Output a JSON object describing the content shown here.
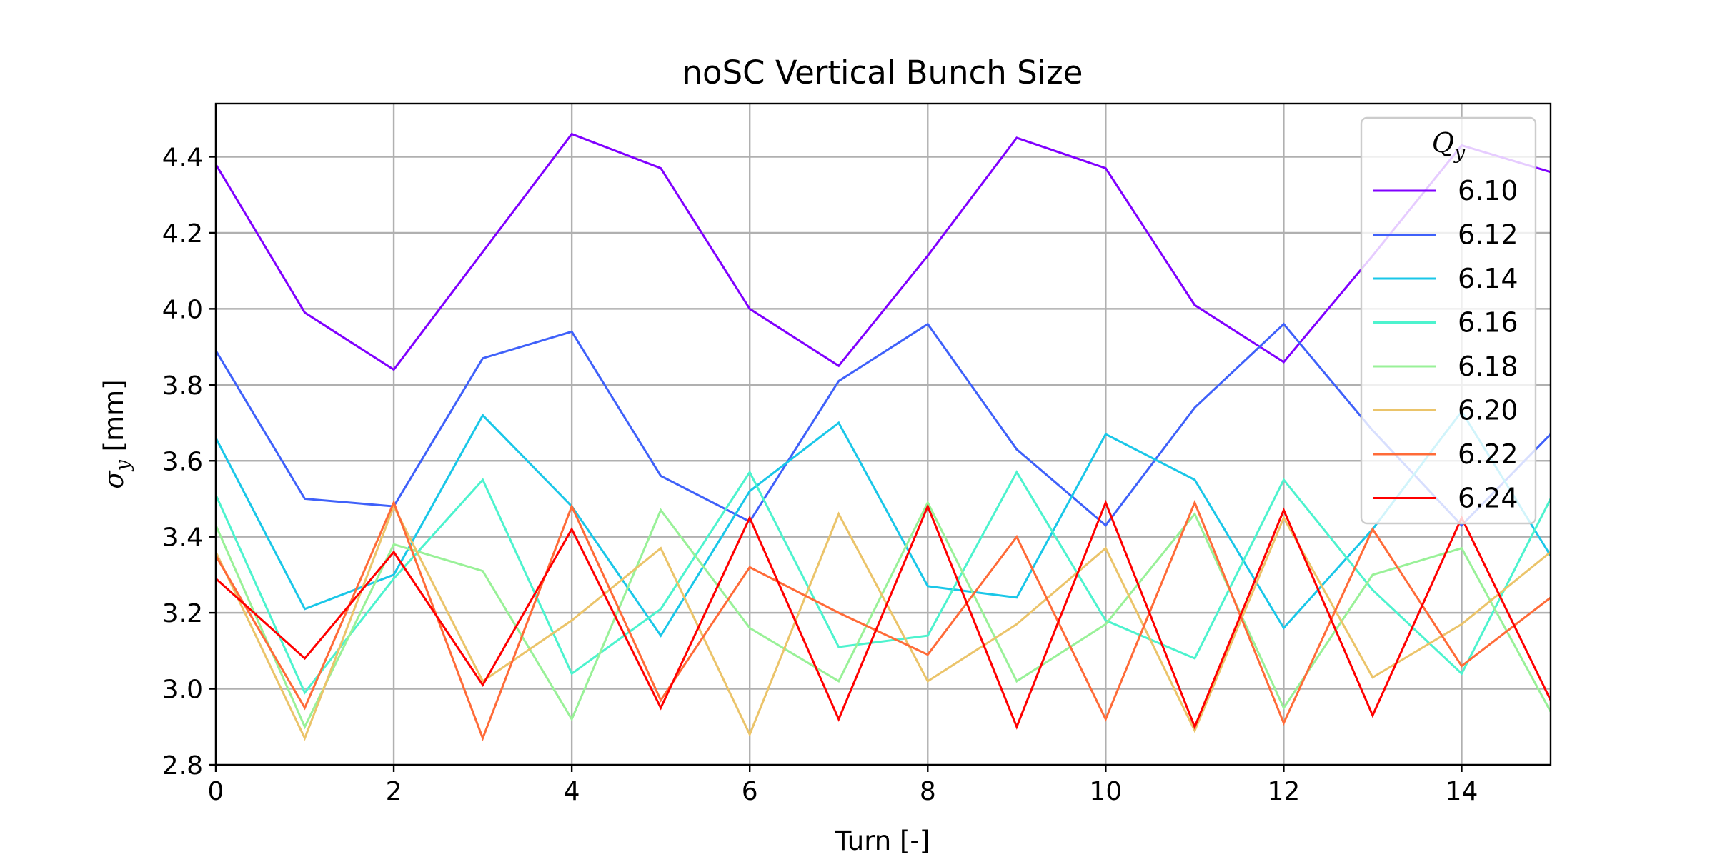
{
  "chart_data": {
    "type": "line",
    "title": "noSC Vertical Bunch Size",
    "xlabel": "Turn [-]",
    "ylabel_symbol": "σ",
    "ylabel_sub": "y",
    "ylabel_unit": " [mm]",
    "xlim": [
      0,
      15
    ],
    "ylim": [
      2.8,
      4.54
    ],
    "xticks": [
      0,
      2,
      4,
      6,
      8,
      10,
      12,
      14
    ],
    "yticks": [
      2.8,
      3.0,
      3.2,
      3.4,
      3.6,
      3.8,
      4.0,
      4.2,
      4.4
    ],
    "grid": true,
    "legend": {
      "title_symbol": "Q",
      "title_sub": "y",
      "placement": "upper-right"
    },
    "x": [
      0,
      1,
      2,
      3,
      4,
      5,
      6,
      7,
      8,
      9,
      10,
      11,
      12,
      13,
      14,
      15
    ],
    "series": [
      {
        "name": "6.10",
        "color": "#8000ff",
        "values": [
          4.38,
          3.99,
          3.84,
          4.15,
          4.46,
          4.37,
          4.0,
          3.85,
          4.14,
          4.45,
          4.37,
          4.01,
          3.86,
          4.14,
          4.43,
          4.36
        ]
      },
      {
        "name": "6.12",
        "color": "#3f61fa",
        "values": [
          3.89,
          3.5,
          3.48,
          3.87,
          3.94,
          3.56,
          3.44,
          3.81,
          3.96,
          3.63,
          3.43,
          3.74,
          3.96,
          3.68,
          3.43,
          3.67
        ]
      },
      {
        "name": "6.14",
        "color": "#1ac7e8",
        "values": [
          3.66,
          3.21,
          3.3,
          3.72,
          3.48,
          3.14,
          3.52,
          3.7,
          3.27,
          3.24,
          3.67,
          3.55,
          3.16,
          3.42,
          3.73,
          3.35
        ]
      },
      {
        "name": "6.16",
        "color": "#4df3ce",
        "values": [
          3.51,
          2.99,
          3.29,
          3.55,
          3.04,
          3.21,
          3.57,
          3.11,
          3.14,
          3.57,
          3.18,
          3.08,
          3.55,
          3.26,
          3.04,
          3.5
        ]
      },
      {
        "name": "6.18",
        "color": "#99f198",
        "values": [
          3.43,
          2.9,
          3.38,
          3.31,
          2.92,
          3.47,
          3.16,
          3.02,
          3.49,
          3.02,
          3.17,
          3.46,
          2.95,
          3.3,
          3.37,
          2.94
        ]
      },
      {
        "name": "6.20",
        "color": "#ebc46a",
        "values": [
          3.36,
          2.87,
          3.48,
          3.02,
          3.18,
          3.37,
          2.88,
          3.46,
          3.02,
          3.17,
          3.37,
          2.89,
          3.45,
          3.03,
          3.17,
          3.36
        ]
      },
      {
        "name": "6.22",
        "color": "#ff6b38",
        "values": [
          3.35,
          2.95,
          3.49,
          2.87,
          3.48,
          2.97,
          3.32,
          3.2,
          3.09,
          3.4,
          2.92,
          3.49,
          2.91,
          3.42,
          3.06,
          3.24
        ]
      },
      {
        "name": "6.24",
        "color": "#ff0000",
        "values": [
          3.29,
          3.08,
          3.36,
          3.01,
          3.42,
          2.95,
          3.45,
          2.92,
          3.48,
          2.9,
          3.49,
          2.9,
          3.47,
          2.93,
          3.45,
          2.97
        ]
      }
    ]
  }
}
